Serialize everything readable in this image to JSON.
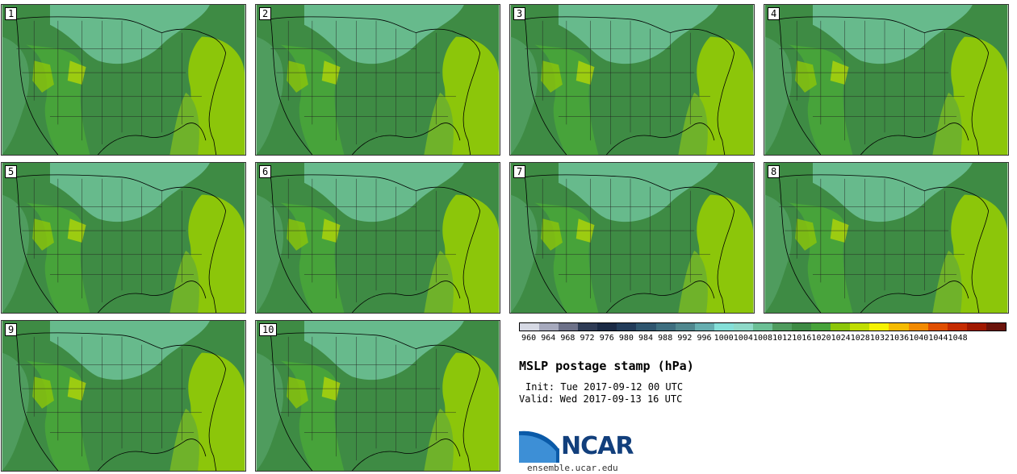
{
  "panels": [
    {
      "label": "1"
    },
    {
      "label": "2"
    },
    {
      "label": "3"
    },
    {
      "label": "4"
    },
    {
      "label": "5"
    },
    {
      "label": "6"
    },
    {
      "label": "7"
    },
    {
      "label": "8"
    },
    {
      "label": "9"
    },
    {
      "label": "10"
    }
  ],
  "colorbar": {
    "colors": [
      "#d6d9e4",
      "#a6a9bd",
      "#6d7189",
      "#2e3b55",
      "#1a2a45",
      "#223c5a",
      "#2f566f",
      "#3e6f80",
      "#50888f",
      "#66aeb0",
      "#84dfd8",
      "#8ed9c8",
      "#6bbf95",
      "#4f9c5e",
      "#3e8b44",
      "#47a33a",
      "#8cc60a",
      "#c0dd00",
      "#f6f200",
      "#f5bb00",
      "#f28a00",
      "#e04e00",
      "#c52b00",
      "#a01800",
      "#6b130b"
    ],
    "labels": [
      "960",
      "964",
      "968",
      "972",
      "976",
      "980",
      "984",
      "988",
      "992",
      "996",
      "1000",
      "1004",
      "1008",
      "1012",
      "1016",
      "1020",
      "1024",
      "1028",
      "1032",
      "1036",
      "1040",
      "1044",
      "1048"
    ]
  },
  "title": "MSLP postage stamp (hPa)",
  "init": "Init: Tue 2017-09-12 00 UTC",
  "valid": "Valid: Wed 2017-09-13 16 UTC",
  "logo": {
    "text": "NCAR"
  },
  "site": "ensemble.ucar.edu"
}
